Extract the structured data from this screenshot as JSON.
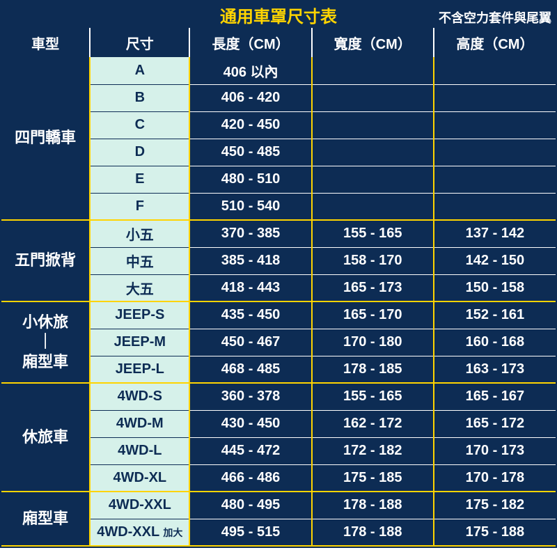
{
  "title": "通用車罩尺寸表",
  "subtitle": "不含空力套件與尾翼",
  "headers": {
    "category": "車型",
    "size": "尺寸",
    "length": "長度（CM）",
    "width": "寬度（CM）",
    "height": "高度（CM）"
  },
  "colors": {
    "primary_bg": "#0d2c54",
    "accent": "#ffd400",
    "size_bg": "#d6f1ea",
    "text_light": "#ffffff"
  },
  "groups": [
    {
      "category": "四門轎車",
      "rows": [
        {
          "size": "A",
          "length": "406 以內",
          "width": "",
          "height": ""
        },
        {
          "size": "B",
          "length": "406 - 420",
          "width": "",
          "height": ""
        },
        {
          "size": "C",
          "length": "420 - 450",
          "width": "",
          "height": ""
        },
        {
          "size": "D",
          "length": "450 - 485",
          "width": "",
          "height": ""
        },
        {
          "size": "E",
          "length": "480 - 510",
          "width": "",
          "height": ""
        },
        {
          "size": "F",
          "length": "510 - 540",
          "width": "",
          "height": ""
        }
      ]
    },
    {
      "category": "五門掀背",
      "rows": [
        {
          "size": "小五",
          "length": "370 - 385",
          "width": "155 - 165",
          "height": "137 - 142"
        },
        {
          "size": "中五",
          "length": "385 - 418",
          "width": "158 - 170",
          "height": "142 - 150"
        },
        {
          "size": "大五",
          "length": "418 - 443",
          "width": "165 - 173",
          "height": "150 - 158"
        }
      ]
    },
    {
      "category": "小休旅｜廂型車",
      "category_line1": "小休旅",
      "category_line2": "｜",
      "category_line3": "廂型車",
      "rows": [
        {
          "size": "JEEP-S",
          "length": "435 - 450",
          "width": "165 - 170",
          "height": "152 - 161"
        },
        {
          "size": "JEEP-M",
          "length": "450 - 467",
          "width": "170 - 180",
          "height": "160 - 168"
        },
        {
          "size": "JEEP-L",
          "length": "468 - 485",
          "width": "178 - 185",
          "height": "163 - 173"
        }
      ]
    },
    {
      "category": "休旅車",
      "rows": [
        {
          "size": "4WD-S",
          "length": "360 - 378",
          "width": "155 - 165",
          "height": "165 - 167"
        },
        {
          "size": "4WD-M",
          "length": "430 - 450",
          "width": "162 - 172",
          "height": "165 - 172"
        },
        {
          "size": "4WD-L",
          "length": "445 - 472",
          "width": "172 - 182",
          "height": "170 - 173"
        },
        {
          "size": "4WD-XL",
          "length": "466 - 486",
          "width": "175 - 185",
          "height": "170 - 178"
        }
      ]
    },
    {
      "category": "廂型車",
      "rows": [
        {
          "size": "4WD-XXL",
          "length": "480 - 495",
          "width": "178 - 188",
          "height": "175 - 182"
        },
        {
          "size": "4WD-XXL",
          "size_suffix": "加大",
          "length": "495 - 515",
          "width": "178 - 188",
          "height": "175 - 188"
        }
      ]
    }
  ]
}
